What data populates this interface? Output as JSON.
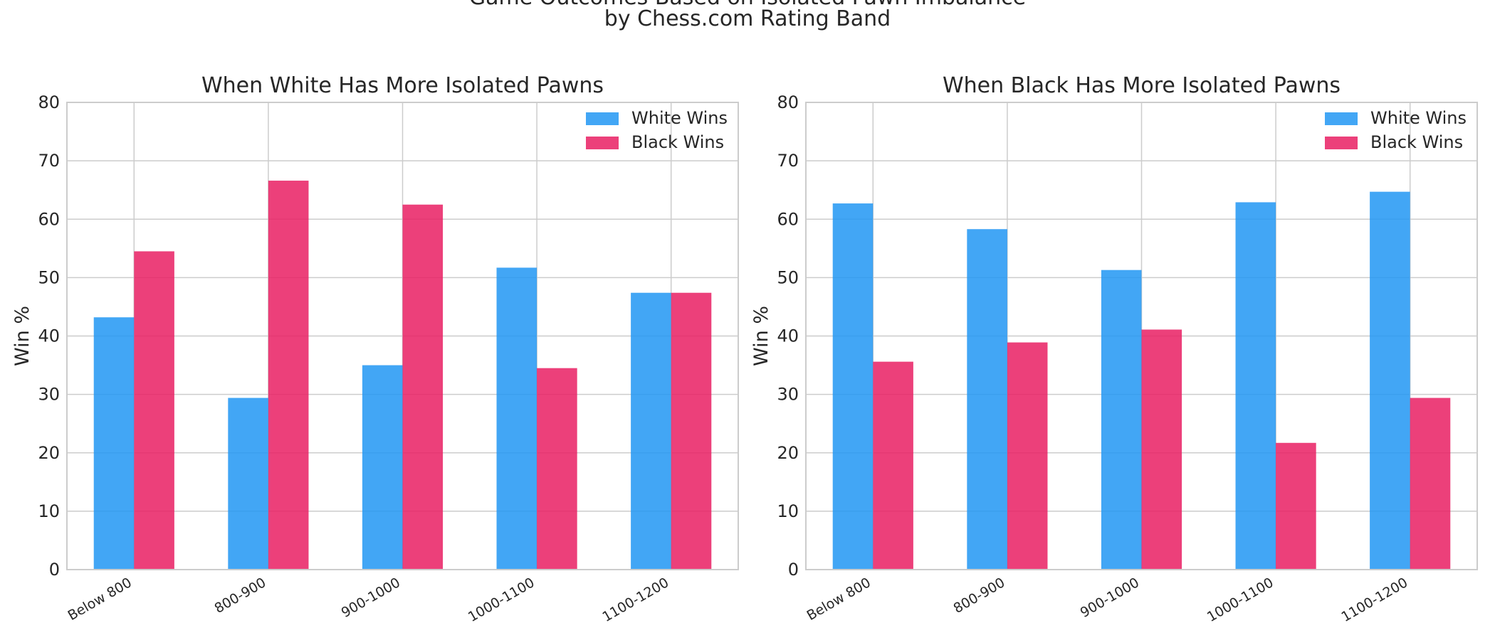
{
  "figure": {
    "suptitle_line1": "Game Outcomes Based on Isolated Pawn Imbalance",
    "suptitle_line2": "by Chess.com Rating Band"
  },
  "colors": {
    "white_wins": "#2196F3",
    "black_wins": "#E91E63"
  },
  "chart_data": [
    {
      "type": "bar",
      "title": "When White Has More Isolated Pawns",
      "xlabel": "",
      "ylabel": "Win %",
      "ylim": [
        0,
        80
      ],
      "yticks": [
        0,
        10,
        20,
        30,
        40,
        50,
        60,
        70,
        80
      ],
      "grid": true,
      "legend_position": "top-right",
      "categories": [
        "Below 800",
        "800-900",
        "900-1000",
        "1000-1100",
        "1100-1200"
      ],
      "series": [
        {
          "name": "White Wins",
          "color": "#2196F3",
          "values": [
            43.2,
            29.4,
            35.0,
            51.7,
            47.4
          ]
        },
        {
          "name": "Black Wins",
          "color": "#E91E63",
          "values": [
            54.5,
            66.6,
            62.5,
            34.5,
            47.4
          ]
        }
      ]
    },
    {
      "type": "bar",
      "title": "When Black Has More Isolated Pawns",
      "xlabel": "",
      "ylabel": "Win %",
      "ylim": [
        0,
        80
      ],
      "yticks": [
        0,
        10,
        20,
        30,
        40,
        50,
        60,
        70,
        80
      ],
      "grid": true,
      "legend_position": "top-right",
      "categories": [
        "Below 800",
        "800-900",
        "900-1000",
        "1000-1100",
        "1100-1200"
      ],
      "series": [
        {
          "name": "White Wins",
          "color": "#2196F3",
          "values": [
            62.7,
            58.3,
            51.3,
            62.9,
            64.7
          ]
        },
        {
          "name": "Black Wins",
          "color": "#E91E63",
          "values": [
            35.6,
            38.9,
            41.1,
            21.7,
            29.4
          ]
        }
      ]
    }
  ]
}
